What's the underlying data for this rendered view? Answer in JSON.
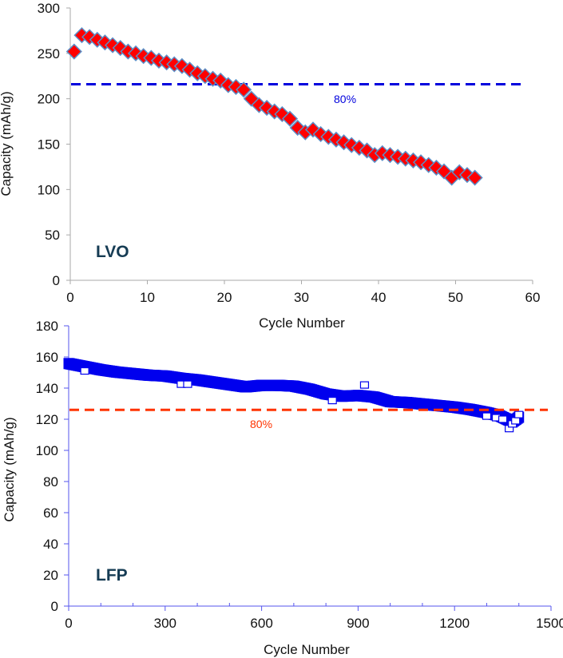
{
  "chart_data": [
    {
      "type": "scatter",
      "panel_label": "LVO",
      "xlabel": "Cycle Number",
      "ylabel": "Capacity (mAh/g)",
      "xlim": [
        0,
        60
      ],
      "ylim": [
        0,
        300
      ],
      "xticks": [
        0,
        10,
        20,
        30,
        40,
        50,
        60
      ],
      "yticks": [
        0,
        50,
        100,
        150,
        200,
        250,
        300
      ],
      "grid": false,
      "axis_color": "#aaaaaa",
      "marker": "diamond",
      "marker_color": "#ff0000",
      "marker_edge_color": "#5b8fc7",
      "reference_line": {
        "label": "80%",
        "value": 216,
        "color": "#0000dd"
      },
      "series": [
        {
          "name": "LVO",
          "x": [
            0.5,
            1.5,
            2.5,
            3.5,
            4.5,
            5.5,
            6.5,
            7.5,
            8.5,
            9.5,
            10.5,
            11.5,
            12.5,
            13.5,
            14.5,
            15.5,
            16.5,
            17.5,
            18.5,
            19.5,
            20.5,
            21.5,
            22.5,
            23.5,
            24.5,
            25.5,
            26.5,
            27.5,
            28.5,
            29.5,
            30.5,
            31.5,
            32.5,
            33.5,
            34.5,
            35.5,
            36.5,
            37.5,
            38.5,
            39.5,
            40.5,
            41.5,
            42.5,
            43.5,
            44.5,
            45.5,
            46.5,
            47.5,
            48.5,
            49.5,
            50.5,
            51.5,
            52.5
          ],
          "y": [
            252,
            270,
            268,
            265,
            262,
            259,
            256,
            252,
            250,
            247,
            245,
            242,
            240,
            238,
            236,
            232,
            228,
            225,
            222,
            220,
            215,
            213,
            210,
            200,
            193,
            190,
            186,
            183,
            178,
            168,
            163,
            166,
            161,
            158,
            155,
            152,
            149,
            146,
            143,
            138,
            140,
            138,
            136,
            134,
            132,
            130,
            127,
            124,
            120,
            113,
            119,
            116,
            113
          ]
        }
      ]
    },
    {
      "type": "scatter",
      "panel_label": "LFP",
      "xlabel": "Cycle Number",
      "ylabel": "Capacity (mAh/g)",
      "xlim": [
        0,
        1500
      ],
      "ylim": [
        0,
        180
      ],
      "xticks": [
        0,
        300,
        600,
        900,
        1200,
        1500
      ],
      "yticks": [
        0,
        20,
        40,
        60,
        80,
        100,
        120,
        140,
        160,
        180
      ],
      "grid": false,
      "axis_color": "#5555ee",
      "marker": "square-open",
      "marker_color": "#0000ee",
      "reference_line": {
        "label": "80%",
        "value": 126,
        "color": "#ff3300"
      },
      "series": [
        {
          "name": "LFP",
          "x": [
            0,
            50,
            100,
            150,
            200,
            250,
            300,
            350,
            400,
            450,
            500,
            550,
            600,
            650,
            700,
            750,
            800,
            850,
            900,
            950,
            1000,
            1050,
            1100,
            1150,
            1200,
            1250,
            1300,
            1340,
            1360,
            1380,
            1400
          ],
          "y": [
            155.5,
            153.5,
            151.5,
            150,
            149,
            148,
            147.5,
            146,
            145,
            143.5,
            142,
            140.5,
            141.5,
            141.5,
            141,
            139,
            136,
            134.5,
            135,
            134,
            131,
            130.5,
            129.5,
            128.5,
            127.5,
            126,
            124,
            122,
            120,
            118,
            121
          ]
        }
      ],
      "outliers": {
        "x": [
          50,
          350,
          370,
          820,
          920,
          1300,
          1330,
          1350,
          1370,
          1380,
          1390,
          1400
        ],
        "y": [
          151,
          142.5,
          142.5,
          132,
          142,
          122,
          121,
          120,
          114,
          117,
          119,
          123
        ]
      }
    }
  ]
}
